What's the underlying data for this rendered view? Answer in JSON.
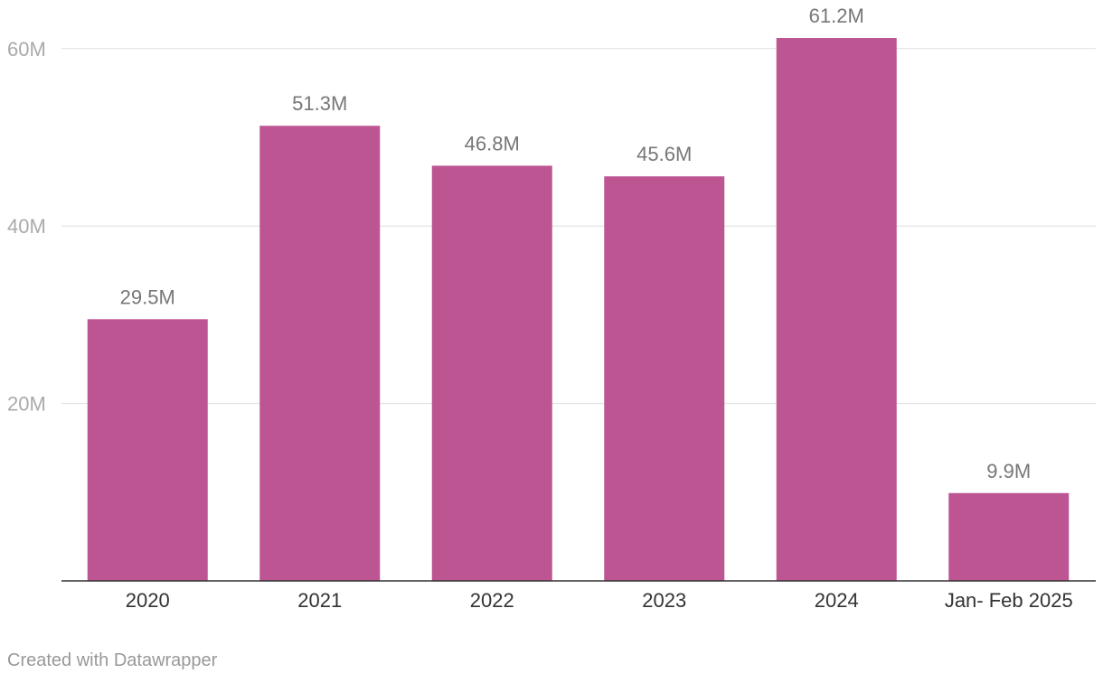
{
  "chart_data": {
    "type": "bar",
    "categories": [
      "2020",
      "2021",
      "2022",
      "2023",
      "2024",
      "Jan- Feb 2025"
    ],
    "values": [
      29.5,
      51.3,
      46.8,
      45.6,
      61.2,
      9.9
    ],
    "value_labels": [
      "29.5M",
      "51.3M",
      "46.8M",
      "45.6M",
      "61.2M",
      "9.9M"
    ],
    "title": "",
    "xlabel": "",
    "ylabel": "",
    "ylim": [
      0,
      60
    ],
    "yticks": [
      {
        "value": 20,
        "label": "20M"
      },
      {
        "value": 40,
        "label": "40M"
      },
      {
        "value": 60,
        "label": "60M"
      }
    ],
    "grid": true,
    "bar_color": "#bd5593"
  },
  "footer": {
    "credit": "Created with Datawrapper"
  }
}
